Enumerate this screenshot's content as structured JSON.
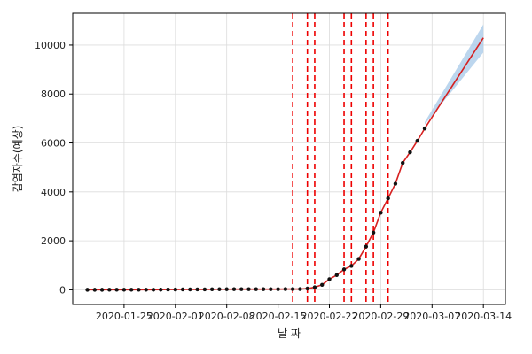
{
  "chart_data": {
    "type": "line",
    "title": "",
    "xlabel": "날 짜",
    "ylabel": "감염자수(예상)",
    "x_ticks": [
      "2020-01-25",
      "2020-02-01",
      "2020-02-08",
      "2020-02-15",
      "2020-02-22",
      "2020-02-29",
      "2020-03-07",
      "2020-03-14"
    ],
    "y_ticks": [
      0,
      2000,
      4000,
      6000,
      8000,
      10000
    ],
    "xlim": [
      "2020-01-18",
      "2020-03-17"
    ],
    "ylim": [
      -600,
      11300
    ],
    "grid": true,
    "observed": {
      "dates": [
        "2020-01-20",
        "2020-01-21",
        "2020-01-22",
        "2020-01-23",
        "2020-01-24",
        "2020-01-25",
        "2020-01-26",
        "2020-01-27",
        "2020-01-28",
        "2020-01-29",
        "2020-01-30",
        "2020-01-31",
        "2020-02-01",
        "2020-02-02",
        "2020-02-03",
        "2020-02-04",
        "2020-02-05",
        "2020-02-06",
        "2020-02-07",
        "2020-02-08",
        "2020-02-09",
        "2020-02-10",
        "2020-02-11",
        "2020-02-12",
        "2020-02-13",
        "2020-02-14",
        "2020-02-15",
        "2020-02-16",
        "2020-02-17",
        "2020-02-18",
        "2020-02-19",
        "2020-02-20",
        "2020-02-21",
        "2020-02-22",
        "2020-02-23",
        "2020-02-24",
        "2020-02-25",
        "2020-02-26",
        "2020-02-27",
        "2020-02-28",
        "2020-02-29",
        "2020-03-01",
        "2020-03-02",
        "2020-03-03",
        "2020-03-04",
        "2020-03-05",
        "2020-03-06"
      ],
      "values": [
        1,
        1,
        1,
        2,
        2,
        3,
        3,
        4,
        4,
        4,
        6,
        11,
        12,
        15,
        15,
        16,
        18,
        23,
        24,
        24,
        27,
        27,
        28,
        28,
        28,
        28,
        28,
        29,
        30,
        31,
        51,
        104,
        204,
        433,
        602,
        833,
        977,
        1261,
        1766,
        2337,
        3150,
        3736,
        4335,
        5186,
        5621,
        6088,
        6593
      ]
    },
    "forecast": {
      "dates": [
        "2020-03-06",
        "2020-03-14"
      ],
      "values": [
        6800,
        10300
      ],
      "upper": [
        6850,
        10850
      ],
      "lower": [
        6750,
        9700
      ]
    },
    "changepoints": [
      "2020-02-17",
      "2020-02-19",
      "2020-02-20",
      "2020-02-24",
      "2020-02-25",
      "2020-02-27",
      "2020-02-28",
      "2020-03-01"
    ],
    "colors": {
      "points": "#111111",
      "fit_line": "#d62020",
      "band": "#a6c8e8",
      "changepoint": "#ee0000",
      "grid": "#dcdcdc",
      "axis": "#000000"
    }
  }
}
